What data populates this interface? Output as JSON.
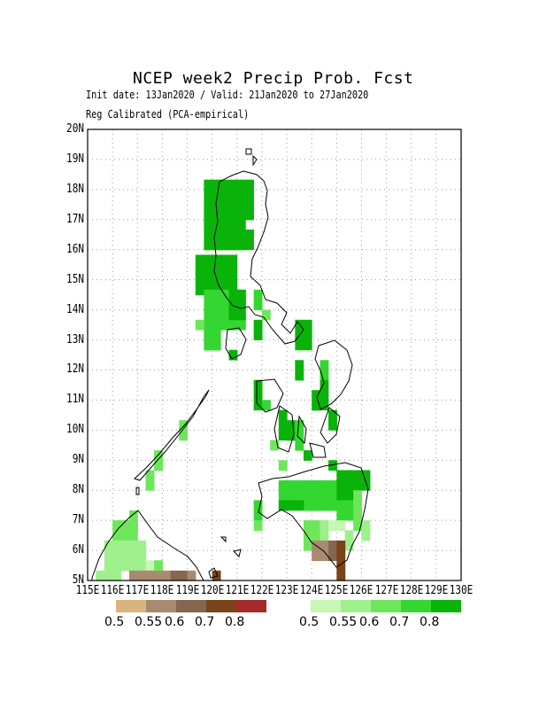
{
  "title": "NCEP week2 Precip Prob. Fcst",
  "subtitle_dates": "Init date: 13Jan2020 / Valid: 21Jan2020 to 27Jan2020",
  "subtitle_method": "Reg Calibrated (PCA-empirical)",
  "y_ticks": [
    "20N",
    "19N",
    "18N",
    "17N",
    "16N",
    "15N",
    "14N",
    "13N",
    "12N",
    "11N",
    "10N",
    "9N",
    "8N",
    "7N",
    "6N",
    "5N"
  ],
  "x_ticks": [
    "115E",
    "116E",
    "117E",
    "118E",
    "119E",
    "120E",
    "121E",
    "122E",
    "123E",
    "124E",
    "125E",
    "126E",
    "127E",
    "128E",
    "129E",
    "130E"
  ],
  "legend_dry": {
    "colors": [
      "#d9b47e",
      "#a88a6e",
      "#856650",
      "#7a4319",
      "#a52a2a"
    ],
    "labels": [
      "0.5",
      "0.55",
      "0.6",
      "0.7",
      "0.8"
    ]
  },
  "legend_wet": {
    "colors": [
      "#c6f7b4",
      "#9ef08c",
      "#6ee65c",
      "#34d631",
      "#0ab30a"
    ],
    "labels": [
      "0.5",
      "0.55",
      "0.6",
      "0.7",
      "0.8"
    ]
  }
}
